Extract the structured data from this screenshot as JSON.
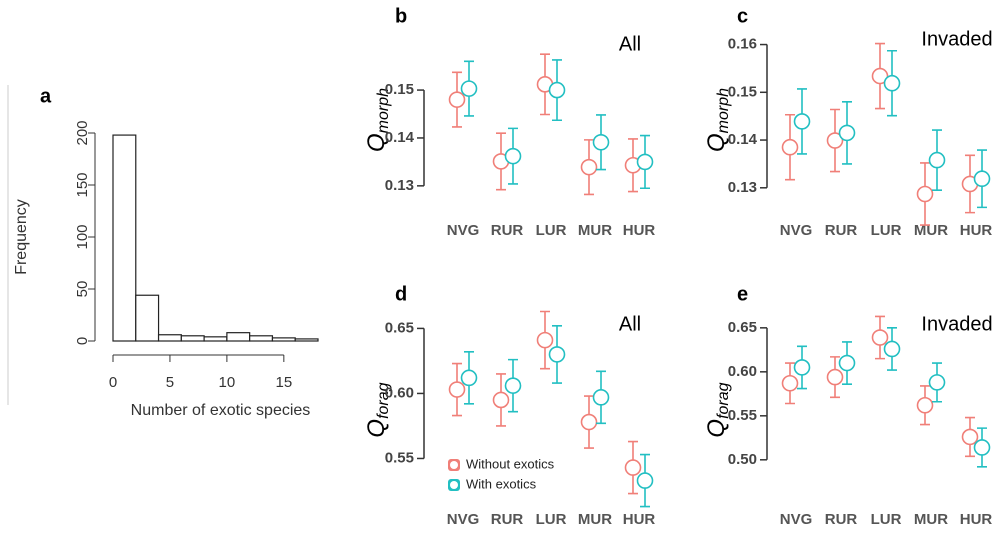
{
  "chart_data": [
    {
      "type": "histogram",
      "panel_label": "a",
      "x_label": "Number of exotic species",
      "y_label": "Frequency",
      "bins": [
        0,
        2,
        4,
        6,
        8,
        10,
        12,
        14,
        16,
        18
      ],
      "values": [
        198,
        44,
        6,
        5,
        4,
        8,
        5,
        3,
        2
      ],
      "xlim": [
        0,
        18
      ],
      "xticks": [
        0,
        5,
        10,
        15
      ],
      "ylim": [
        0,
        200
      ],
      "yticks": [
        0,
        50,
        100,
        150,
        200
      ],
      "color": "#ffffff"
    },
    {
      "type": "errorpoint",
      "panel_label": "b",
      "annotation": "All",
      "y_label": "Q",
      "y_label_sub": "morph",
      "categories": [
        "NVG",
        "RUR",
        "LUR",
        "MUR",
        "HUR"
      ],
      "series": [
        {
          "name": "Without exotics",
          "color": "#f07f78",
          "values": [
            0.148,
            0.1351,
            0.1512,
            0.1339,
            0.1343
          ],
          "errors": [
            0.0057,
            0.0059,
            0.0063,
            0.0057,
            0.0055
          ]
        },
        {
          "name": "With exotics",
          "color": "#22bfc2",
          "values": [
            0.1503,
            0.1362,
            0.15,
            0.1391,
            0.135
          ],
          "errors": [
            0.0057,
            0.0058,
            0.0063,
            0.0057,
            0.0055
          ]
        }
      ],
      "ylim": [
        0.126,
        0.1615
      ],
      "yticks": [
        0.13,
        0.14,
        0.15
      ],
      "legend": false
    },
    {
      "type": "errorpoint",
      "panel_label": "c",
      "annotation": "Invaded",
      "y_label": "Q",
      "y_label_sub": "morph",
      "categories": [
        "NVG",
        "RUR",
        "LUR",
        "MUR",
        "HUR"
      ],
      "series": [
        {
          "name": "Without exotics",
          "color": "#f07f78",
          "values": [
            0.1385,
            0.1399,
            0.1534,
            0.1287,
            0.1308
          ],
          "errors": [
            0.0068,
            0.0065,
            0.0068,
            0.0065,
            0.006
          ]
        },
        {
          "name": "With exotics",
          "color": "#22bfc2",
          "values": [
            0.1439,
            0.1415,
            0.1519,
            0.1358,
            0.1319
          ],
          "errors": [
            0.0068,
            0.0065,
            0.0068,
            0.0063,
            0.006
          ]
        }
      ],
      "ylim": [
        0.122,
        0.162
      ],
      "yticks": [
        0.13,
        0.14,
        0.15,
        0.16
      ],
      "legend": false
    },
    {
      "type": "errorpoint",
      "panel_label": "d",
      "annotation": "All",
      "y_label": "Q",
      "y_label_sub": "forag",
      "categories": [
        "NVG",
        "RUR",
        "LUR",
        "MUR",
        "HUR"
      ],
      "series": [
        {
          "name": "Without exotics",
          "color": "#f07f78",
          "values": [
            0.603,
            0.595,
            0.641,
            0.578,
            0.543
          ],
          "errors": [
            0.02,
            0.02,
            0.022,
            0.02,
            0.02
          ]
        },
        {
          "name": "With exotics",
          "color": "#22bfc2",
          "values": [
            0.612,
            0.606,
            0.63,
            0.597,
            0.533
          ],
          "errors": [
            0.02,
            0.02,
            0.022,
            0.02,
            0.02
          ]
        }
      ],
      "ylim": [
        0.505,
        0.668
      ],
      "yticks": [
        0.55,
        {
          "value": 0.6,
          "label": "0.60"
        },
        0.65
      ],
      "legend": "bottom-left"
    },
    {
      "type": "errorpoint",
      "panel_label": "e",
      "annotation": "Invaded",
      "y_label": "Q",
      "y_label_sub": "forag",
      "categories": [
        "NVG",
        "RUR",
        "LUR",
        "MUR",
        "HUR"
      ],
      "series": [
        {
          "name": "Without exotics",
          "color": "#f07f78",
          "values": [
            0.587,
            0.594,
            0.639,
            0.562,
            0.526
          ],
          "errors": [
            0.023,
            0.023,
            0.024,
            0.022,
            0.022
          ]
        },
        {
          "name": "With exotics",
          "color": "#22bfc2",
          "values": [
            0.605,
            0.61,
            0.626,
            0.588,
            0.514
          ],
          "errors": [
            0.024,
            0.024,
            0.024,
            0.022,
            0.022
          ]
        }
      ],
      "ylim": [
        0.485,
        0.668
      ],
      "yticks": [
        {
          "value": 0.5,
          "label": "0.50"
        },
        0.55,
        {
          "value": 0.6,
          "label": "0.60"
        },
        0.65
      ],
      "legend": false
    }
  ]
}
